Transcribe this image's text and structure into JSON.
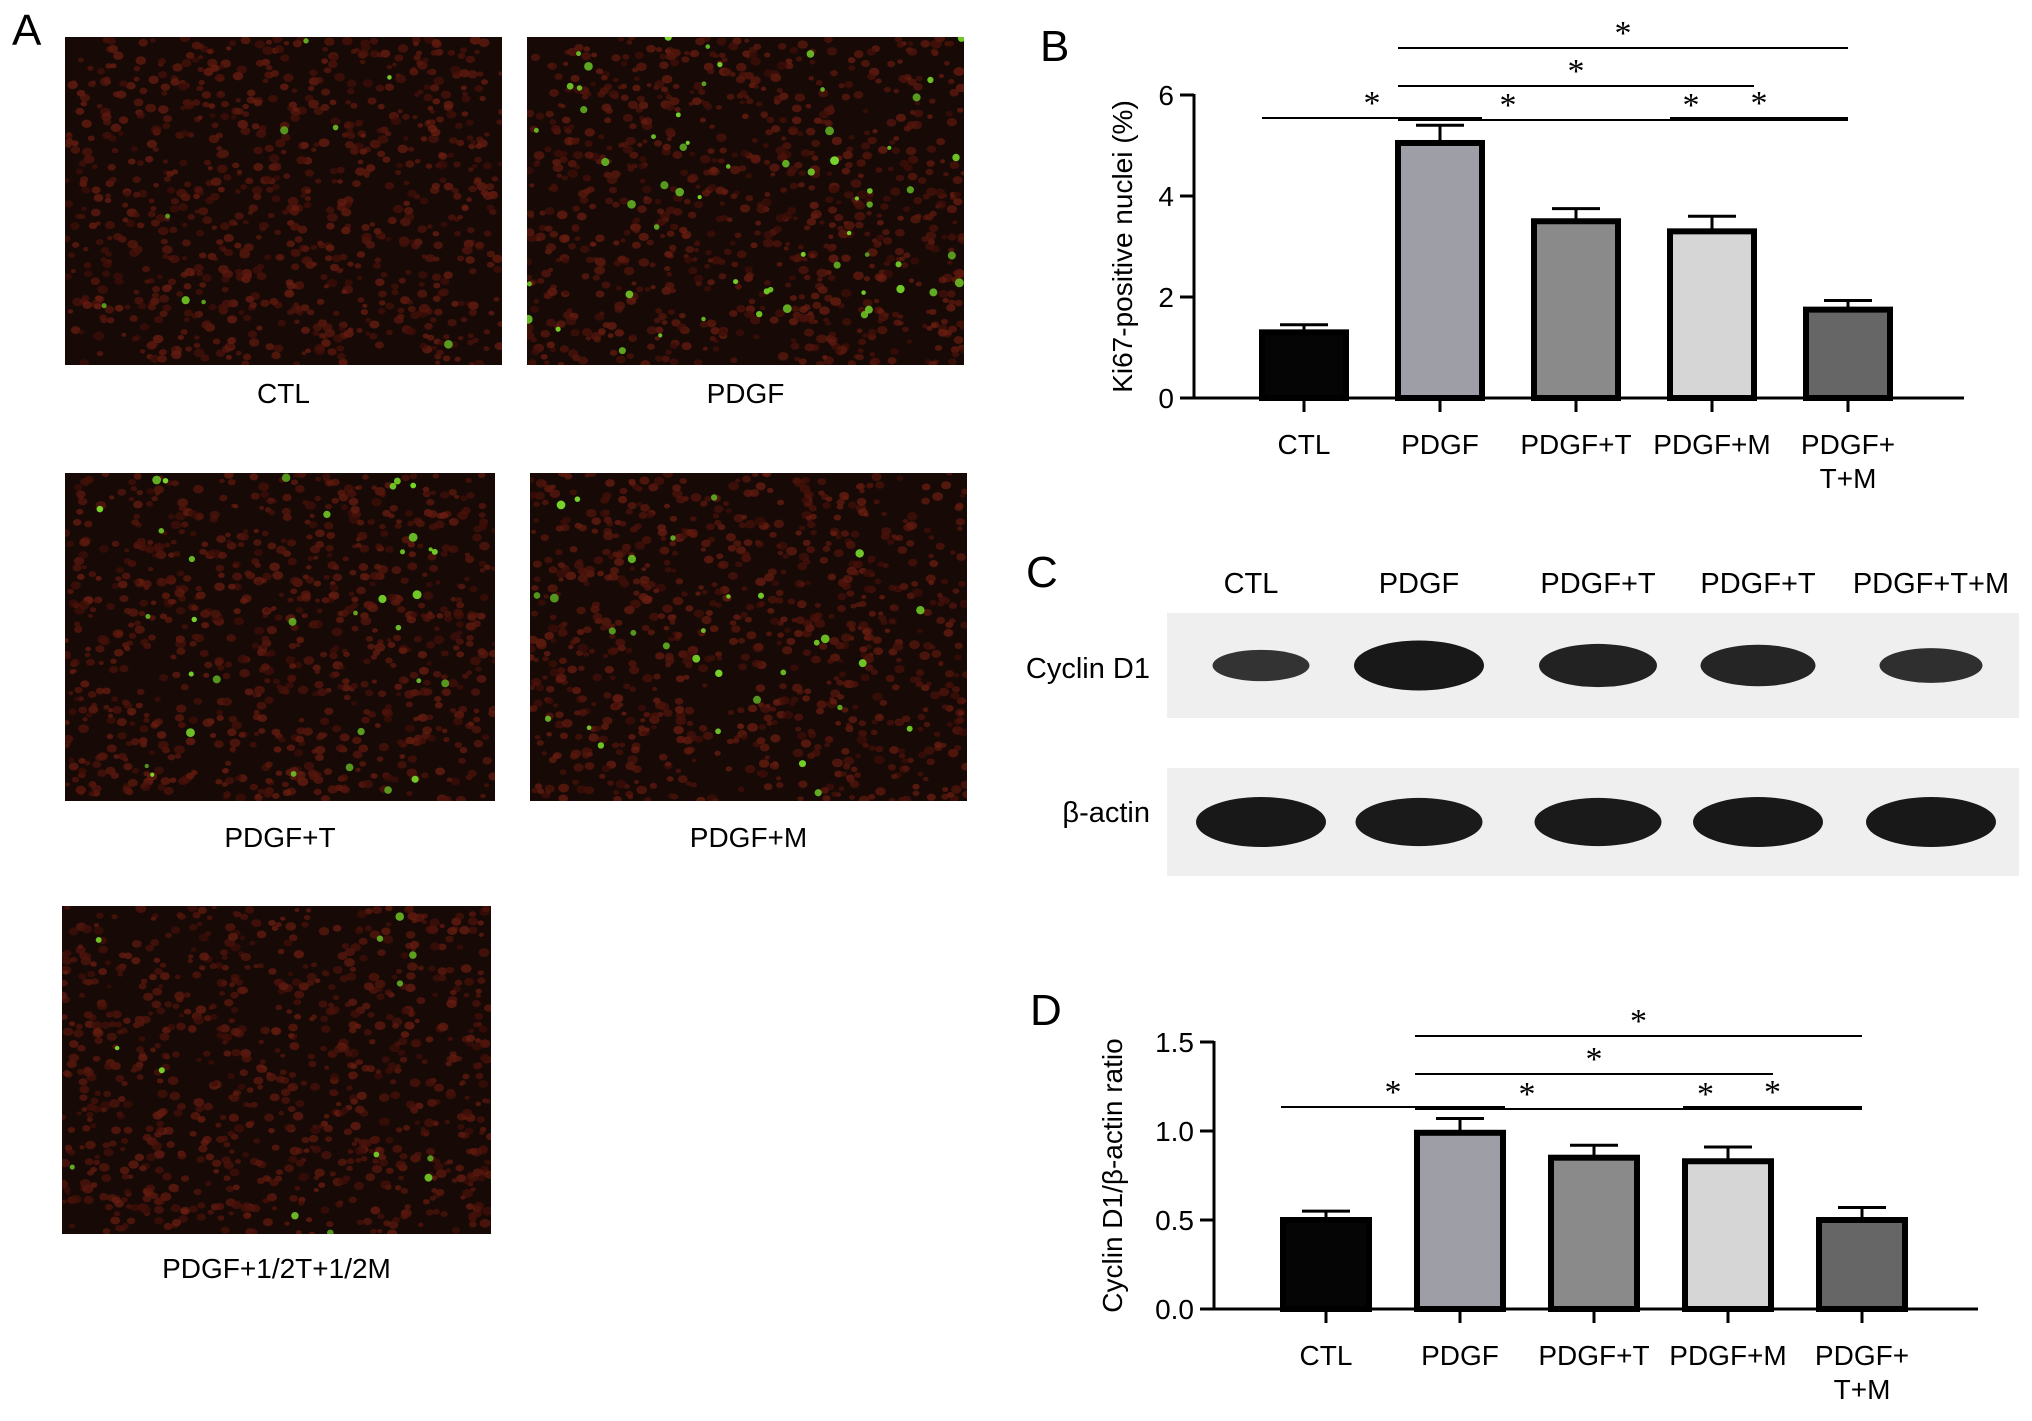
{
  "panel_a": {
    "letter": "A",
    "images": [
      {
        "label": "CTL",
        "green_density": 0.15
      },
      {
        "label": "PDGF",
        "green_density": 1.0
      },
      {
        "label": "PDGF+T",
        "green_density": 0.55
      },
      {
        "label": "PDGF+M",
        "green_density": 0.5
      },
      {
        "label": "PDGF+1/2T+1/2M",
        "green_density": 0.22
      }
    ]
  },
  "panel_b": {
    "letter": "B",
    "significance_mark": "*",
    "chart_data": {
      "type": "bar",
      "categories": [
        "CTL",
        "PDGF",
        "PDGF+T",
        "PDGF+M",
        "PDGF+\nT+M"
      ],
      "values": [
        1.3,
        5.05,
        3.5,
        3.3,
        1.75
      ],
      "errors": [
        0.15,
        0.35,
        0.25,
        0.3,
        0.18
      ],
      "bar_colors": [
        "#050505",
        "#9e9ea6",
        "#8a8a8a",
        "#d6d6d6",
        "#666666"
      ],
      "ylabel": "Ki67-positive nuclei (%)",
      "ylim": [
        0,
        6
      ],
      "yticks": [
        "0",
        "2",
        "4",
        "6"
      ],
      "significance": [
        {
          "from": 0,
          "to": 1,
          "level": 0
        },
        {
          "from": 1,
          "to": 2,
          "level": 1
        },
        {
          "from": 2,
          "to": 4,
          "level": 1
        },
        {
          "from": 1,
          "to": 3,
          "level": 2
        },
        {
          "from": 1,
          "to": 4,
          "level": 3
        },
        {
          "from": 3,
          "to": 4,
          "level": 0
        }
      ]
    }
  },
  "panel_c": {
    "letter": "C",
    "lanes": [
      "CTL",
      "PDGF",
      "PDGF+T",
      "PDGF+T",
      "PDGF+T+M"
    ],
    "rows": [
      {
        "label": "Cyclin D1",
        "intensities": [
          0.45,
          1.0,
          0.8,
          0.75,
          0.55
        ]
      },
      {
        "label": "β-actin",
        "intensities": [
          1.0,
          0.95,
          0.95,
          1.0,
          1.0
        ]
      }
    ]
  },
  "panel_d": {
    "letter": "D",
    "significance_mark": "*",
    "chart_data": {
      "type": "bar",
      "categories": [
        "CTL",
        "PDGF",
        "PDGF+T",
        "PDGF+M",
        "PDGF+\nT+M"
      ],
      "values": [
        0.5,
        0.99,
        0.85,
        0.83,
        0.5
      ],
      "errors": [
        0.05,
        0.08,
        0.07,
        0.08,
        0.07
      ],
      "bar_colors": [
        "#050505",
        "#9e9ea6",
        "#8a8a8a",
        "#d6d6d6",
        "#666666"
      ],
      "ylabel": "Cyclin D1/β-actin ratio",
      "ylim": [
        0,
        1.5
      ],
      "yticks": [
        "0.0",
        "0.5",
        "1.0",
        "1.5"
      ],
      "significance": [
        {
          "from": 0,
          "to": 1,
          "level": 0
        },
        {
          "from": 1,
          "to": 2,
          "level": 1
        },
        {
          "from": 2,
          "to": 4,
          "level": 1
        },
        {
          "from": 1,
          "to": 3,
          "level": 2
        },
        {
          "from": 1,
          "to": 4,
          "level": 3
        },
        {
          "from": 3,
          "to": 4,
          "level": 0
        }
      ]
    }
  }
}
